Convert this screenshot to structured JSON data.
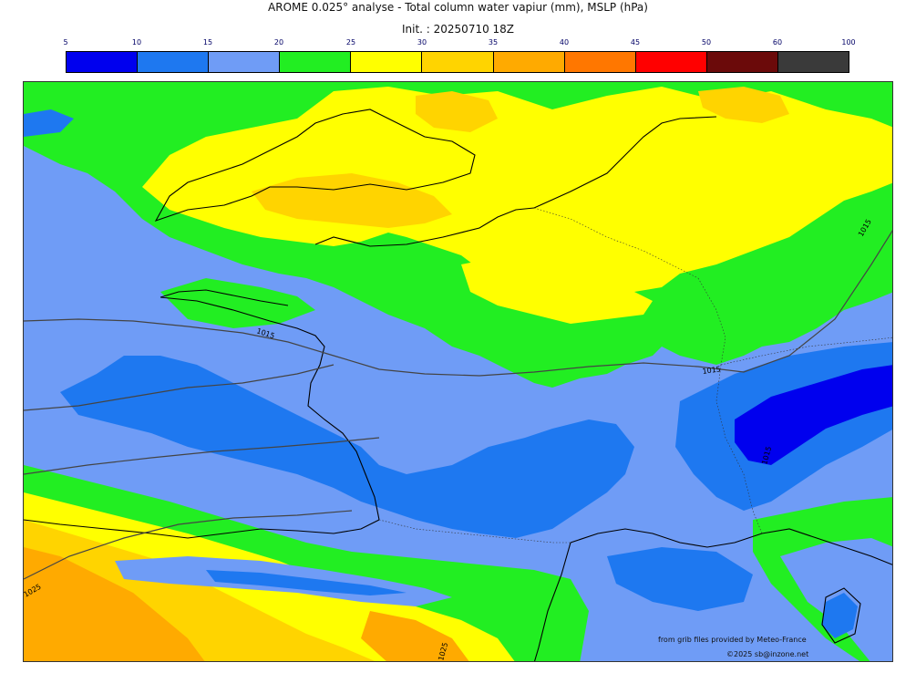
{
  "header": {
    "title": "AROME 0.025° analyse - Total column water vapiur (mm), MSLP (hPa)",
    "init": "Init. : 20250710 18Z"
  },
  "legend": {
    "ticks": [
      "5",
      "10",
      "15",
      "20",
      "25",
      "30",
      "35",
      "40",
      "45",
      "50",
      "60",
      "100"
    ],
    "colors": [
      "#0000ee",
      "#1e78f0",
      "#6f9cf6",
      "#22ee22",
      "#ffff00",
      "#ffd400",
      "#ffaa00",
      "#ff7700",
      "#ff0000",
      "#6b0a0a",
      "#3a3a3a"
    ]
  },
  "isobars": [
    "1015",
    "1015",
    "1015",
    "1015",
    "1025",
    "1025"
  ],
  "footer": {
    "source": "from grib files provided by Meteo-France",
    "copyright": "©2025 sb@inzone.net"
  }
}
